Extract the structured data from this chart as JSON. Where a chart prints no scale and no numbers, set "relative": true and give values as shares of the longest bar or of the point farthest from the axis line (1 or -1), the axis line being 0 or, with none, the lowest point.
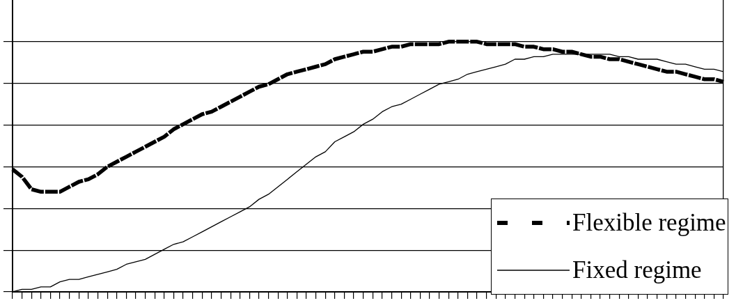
{
  "chart_data": {
    "type": "line",
    "relative": true,
    "categories": [
      null,
      null,
      null,
      null,
      null,
      null,
      null,
      null,
      null,
      null,
      null,
      null,
      null,
      null,
      null,
      null,
      null,
      null,
      null,
      null,
      null,
      null,
      null,
      null,
      null,
      null,
      null,
      null,
      null,
      null,
      null,
      null,
      null,
      null,
      null,
      null,
      null,
      null,
      null,
      null,
      null,
      null,
      null,
      null,
      null,
      null,
      null,
      null,
      null,
      null,
      null,
      null,
      null,
      null,
      null,
      null,
      null,
      null,
      null,
      null,
      null,
      null,
      null,
      null,
      null,
      null,
      null,
      null,
      null,
      null,
      null,
      null,
      null,
      null,
      null,
      null
    ],
    "series": [
      {
        "name": "Flexible regime",
        "color": "#000000",
        "line_style": "dashed",
        "values": [
          0.49,
          0.46,
          0.41,
          0.4,
          0.4,
          0.4,
          0.42,
          0.44,
          0.45,
          0.47,
          0.5,
          0.52,
          0.54,
          0.56,
          0.58,
          0.6,
          0.62,
          0.65,
          0.67,
          0.69,
          0.71,
          0.72,
          0.74,
          0.76,
          0.78,
          0.8,
          0.82,
          0.83,
          0.85,
          0.87,
          0.88,
          0.89,
          0.9,
          0.91,
          0.93,
          0.94,
          0.95,
          0.96,
          0.96,
          0.97,
          0.98,
          0.98,
          0.99,
          0.99,
          0.99,
          0.99,
          1,
          1,
          1,
          1,
          0.99,
          0.99,
          0.99,
          0.99,
          0.98,
          0.98,
          0.97,
          0.97,
          0.96,
          0.96,
          0.95,
          0.94,
          0.94,
          0.93,
          0.93,
          0.92,
          0.91,
          0.9,
          0.89,
          0.88,
          0.88,
          0.87,
          0.86,
          0.85,
          0.85,
          0.84
        ]
      },
      {
        "name": "Fixed regime",
        "color": "#000000",
        "line_style": "solid",
        "values": [
          0.0,
          0.01,
          0.01,
          0.02,
          0.02,
          0.04,
          0.05,
          0.05,
          0.06,
          0.07,
          0.08,
          0.09,
          0.11,
          0.12,
          0.13,
          0.15,
          0.17,
          0.19,
          0.2,
          0.22,
          0.24,
          0.26,
          0.28,
          0.3,
          0.32,
          0.34,
          0.37,
          0.39,
          0.42,
          0.45,
          0.48,
          0.51,
          0.54,
          0.56,
          0.6,
          0.62,
          0.64,
          0.67,
          0.69,
          0.72,
          0.74,
          0.75,
          0.77,
          0.79,
          0.81,
          0.83,
          0.84,
          0.85,
          0.87,
          0.88,
          0.89,
          0.9,
          0.91,
          0.93,
          0.93,
          0.94,
          0.94,
          0.95,
          0.95,
          0.95,
          0.95,
          0.95,
          0.95,
          0.95,
          0.94,
          0.94,
          0.93,
          0.93,
          0.93,
          0.92,
          0.91,
          0.91,
          0.9,
          0.89,
          0.89,
          0.88
        ]
      }
    ],
    "grid": "y",
    "legend": "bottom right",
    "marker": "none",
    "tick_labels": false
  }
}
